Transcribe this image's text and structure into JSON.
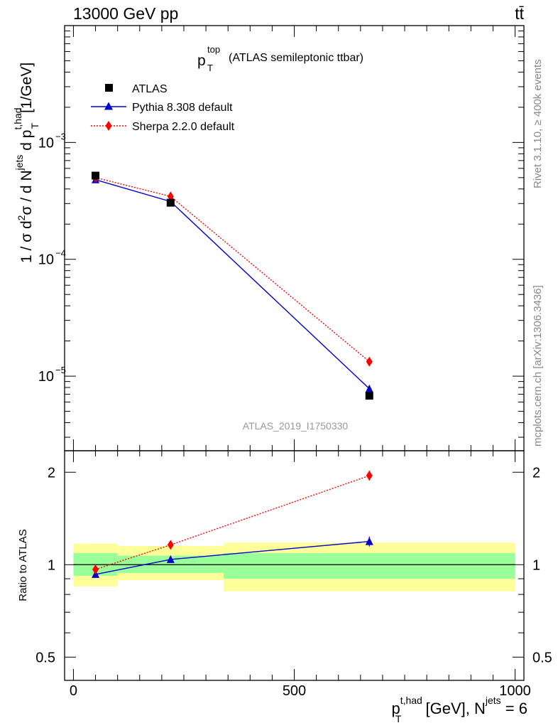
{
  "header": {
    "energy_label": "13000 GeV pp",
    "process_label": "tt̄"
  },
  "side_labels": {
    "rivet": "Rivet 3.1.10, ≥ 400k events",
    "mcplots": "mcplots.cern.ch [arXiv:1306.3436]"
  },
  "plot_title": {
    "var": "p",
    "sub": "T",
    "sup": "top",
    "text": "(ATLAS semileptonic ttbar)"
  },
  "analysis_id": "ATLAS_2019_I1750330",
  "legend": {
    "atlas": "ATLAS",
    "pythia": "Pythia 8.308 default",
    "sherpa": "Sherpa 2.2.0 default"
  },
  "ylabel_top": {
    "p1": "1 / σ d",
    "sup2": "2",
    "p2": "σ /  d N",
    "supjets": "jets",
    "p3": " d p",
    "supthad": "t,had",
    "subT": "T",
    "p4": " [1/GeV]"
  },
  "ylabel_bottom": "Ratio to ATLAS",
  "xlabel": {
    "p": "p",
    "sup": "t,had",
    "sub": "T",
    "mid": " [GeV], N",
    "sup2": "jets",
    "end": " = 6"
  },
  "colors": {
    "atlas": "#000000",
    "pythia": "#0000cc",
    "sherpa": "#ff0000",
    "band_outer": "#ffff99",
    "band_inner": "#99ff99"
  },
  "chart_data": [
    {
      "type": "line",
      "panel": "main",
      "yscale": "log",
      "xlim": [
        -20,
        1020
      ],
      "ylim": [
        2.3e-06,
        0.01
      ],
      "x_ticks": [
        0,
        500,
        1000
      ],
      "y_ticks": [
        {
          "value": 1e-05,
          "base": "10",
          "exp": "−5"
        },
        {
          "value": 0.0001,
          "base": "10",
          "exp": "−4"
        },
        {
          "value": 0.001,
          "base": "10",
          "exp": "−3"
        }
      ],
      "series": [
        {
          "name": "ATLAS",
          "marker": "square",
          "x": [
            50,
            220,
            670
          ],
          "values": [
            0.00052,
            0.000305,
            6.8e-06
          ]
        },
        {
          "name": "Pythia 8.308 default",
          "marker": "triangle",
          "x": [
            50,
            220,
            670
          ],
          "values": [
            0.00048,
            0.000312,
            7.8e-06
          ]
        },
        {
          "name": "Sherpa 2.2.0 default",
          "marker": "diamond",
          "x": [
            50,
            220,
            670
          ],
          "values": [
            0.0005,
            0.000345,
            1.33e-05
          ]
        }
      ]
    },
    {
      "type": "line",
      "panel": "ratio",
      "yscale": "log",
      "xlim": [
        -20,
        1020
      ],
      "ylim": [
        0.42,
        2.35
      ],
      "x_ticks": [
        {
          "value": 0,
          "label": "0"
        },
        {
          "value": 500,
          "label": "500"
        },
        {
          "value": 1000,
          "label": "1000"
        }
      ],
      "y_ticks": [
        {
          "value": 0.5,
          "label": "0.5"
        },
        {
          "value": 1,
          "label": "1"
        },
        {
          "value": 2,
          "label": "2"
        }
      ],
      "bins": [
        {
          "x_low": 0,
          "x_high": 100,
          "inner": [
            0.92,
            1.09
          ],
          "outer": [
            0.85,
            1.17
          ]
        },
        {
          "x_low": 100,
          "x_high": 340,
          "inner": [
            0.94,
            1.07
          ],
          "outer": [
            0.89,
            1.15
          ]
        },
        {
          "x_low": 340,
          "x_high": 1000,
          "inner": [
            0.9,
            1.09
          ],
          "outer": [
            0.82,
            1.18
          ]
        }
      ],
      "series": [
        {
          "name": "Pythia 8.308 default",
          "x": [
            50,
            220,
            670
          ],
          "values": [
            0.93,
            1.04,
            1.19
          ]
        },
        {
          "name": "Sherpa 2.2.0 default",
          "x": [
            50,
            220,
            670
          ],
          "values": [
            0.965,
            1.16,
            1.95
          ]
        }
      ]
    }
  ]
}
